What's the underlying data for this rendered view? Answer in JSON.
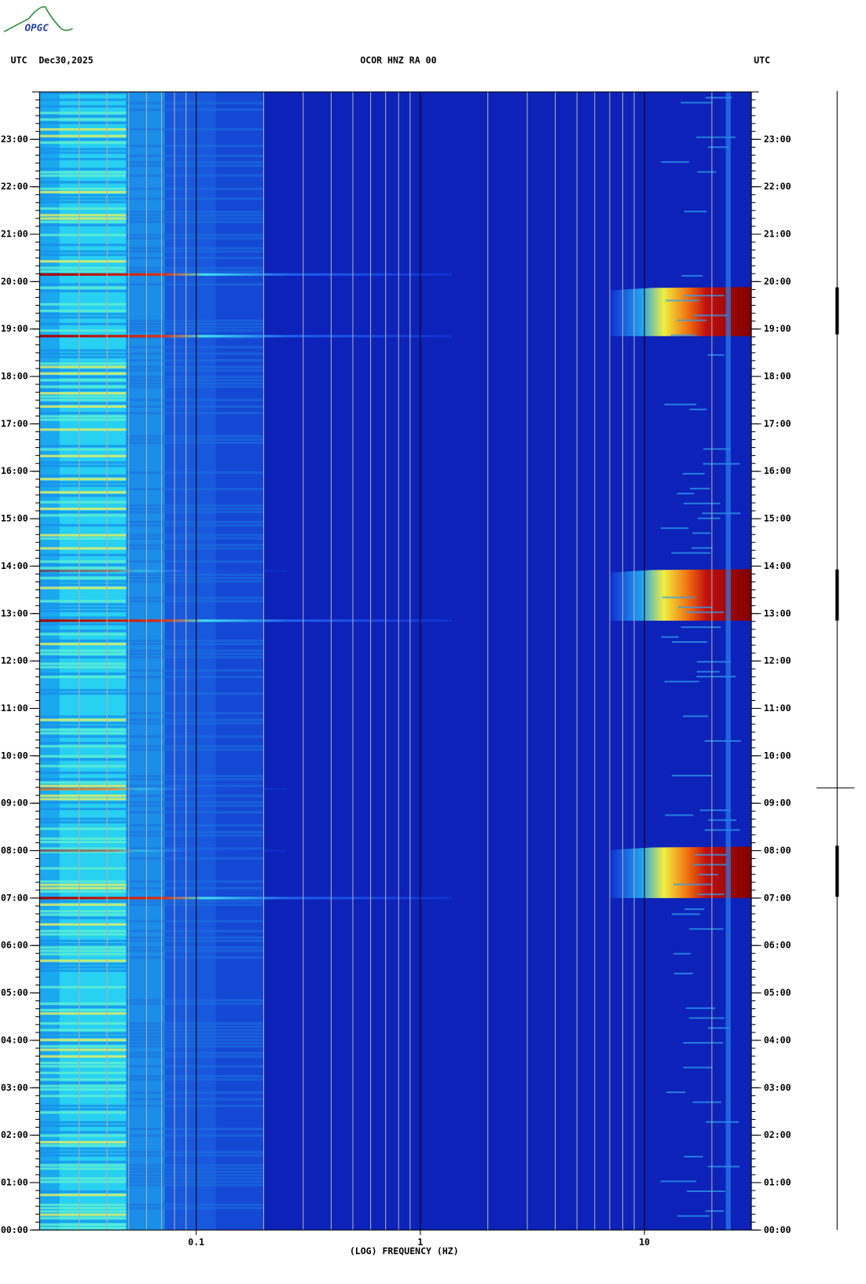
{
  "logo": "OPGC",
  "chart_data": {
    "type": "spectrogram",
    "title": "OCOR HNZ RA 00",
    "time_zone_left": "UTC",
    "date": "Dec30,2025",
    "time_zone_right": "UTC",
    "x_label": "(LOG) FREQUENCY (HZ)",
    "x_scale": "log",
    "xlim": [
      0.02,
      30
    ],
    "xticks": [
      0.1,
      1,
      10
    ],
    "xminorticks": [
      0.03,
      0.04,
      0.05,
      0.06,
      0.07,
      0.08,
      0.09,
      0.2,
      0.3,
      0.4,
      0.5,
      0.6,
      0.7,
      0.8,
      0.9,
      2,
      3,
      4,
      5,
      6,
      7,
      8,
      9,
      20
    ],
    "ylim": [
      0,
      24
    ],
    "yticks": [
      {
        "value": 0,
        "label": "00:00"
      },
      {
        "value": 1,
        "label": "01:00"
      },
      {
        "value": 2,
        "label": "02:00"
      },
      {
        "value": 3,
        "label": "03:00"
      },
      {
        "value": 4,
        "label": "04:00"
      },
      {
        "value": 5,
        "label": "05:00"
      },
      {
        "value": 6,
        "label": "06:00"
      },
      {
        "value": 7,
        "label": "07:00"
      },
      {
        "value": 8,
        "label": "08:00"
      },
      {
        "value": 9,
        "label": "09:00"
      },
      {
        "value": 10,
        "label": "10:00"
      },
      {
        "value": 11,
        "label": "11:00"
      },
      {
        "value": 12,
        "label": "12:00"
      },
      {
        "value": 13,
        "label": "13:00"
      },
      {
        "value": 14,
        "label": "14:00"
      },
      {
        "value": 15,
        "label": "15:00"
      },
      {
        "value": 16,
        "label": "16:00"
      },
      {
        "value": 17,
        "label": "17:00"
      },
      {
        "value": 18,
        "label": "18:00"
      },
      {
        "value": 19,
        "label": "19:00"
      },
      {
        "value": 20,
        "label": "20:00"
      },
      {
        "value": 21,
        "label": "21:00"
      },
      {
        "value": 22,
        "label": "22:00"
      },
      {
        "value": 23,
        "label": "23:00"
      }
    ]
  }
}
